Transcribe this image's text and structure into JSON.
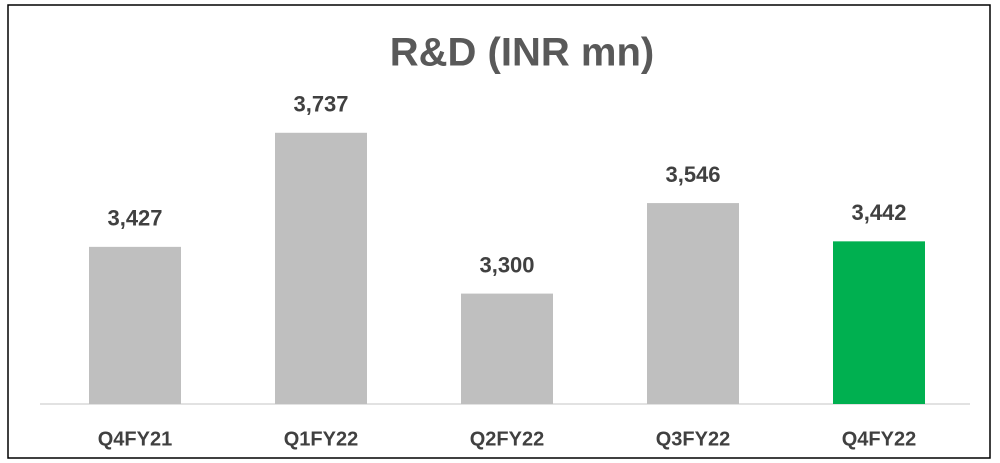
{
  "chart_data": {
    "type": "bar",
    "title": "R&D (INR mn)",
    "categories": [
      "Q4FY21",
      "Q1FY22",
      "Q2FY22",
      "Q3FY22",
      "Q4FY22"
    ],
    "values": [
      3427,
      3737,
      3300,
      3546,
      3442
    ],
    "value_labels": [
      "3,427",
      "3,737",
      "3,300",
      "3,546",
      "3,442"
    ],
    "colors": [
      "#bfbfbf",
      "#bfbfbf",
      "#bfbfbf",
      "#bfbfbf",
      "#00b050"
    ],
    "ylim": [
      3000,
      4000
    ]
  }
}
